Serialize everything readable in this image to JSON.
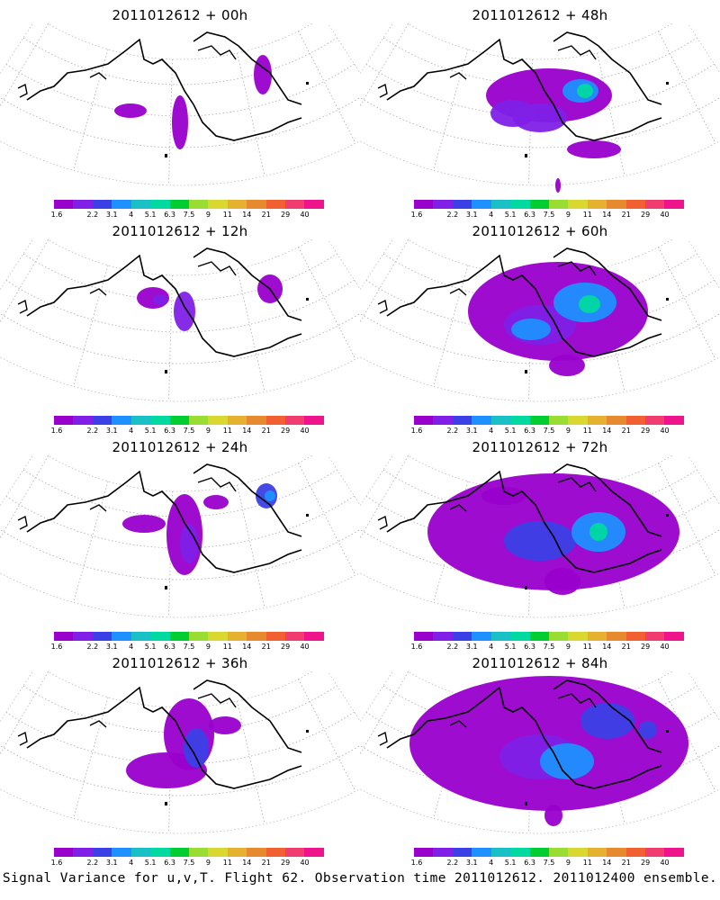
{
  "panels": [
    {
      "title": "2011012612 + 00h",
      "blobs": [
        [
          145,
          97,
          18,
          8,
          0
        ],
        [
          200,
          110,
          9,
          30,
          0
        ],
        [
          292,
          57,
          10,
          22,
          0
        ]
      ]
    },
    {
      "title": "2011012612 + 12h",
      "blobs": [
        [
          170,
          65,
          18,
          12,
          0
        ],
        [
          205,
          80,
          12,
          22,
          1
        ],
        [
          178,
          67,
          8,
          6,
          1
        ],
        [
          300,
          55,
          14,
          16,
          0
        ]
      ]
    },
    {
      "title": "2011012612 + 24h",
      "blobs": [
        [
          160,
          76,
          24,
          10,
          0
        ],
        [
          205,
          88,
          20,
          45,
          0
        ],
        [
          210,
          98,
          10,
          22,
          1
        ],
        [
          240,
          52,
          14,
          8,
          0
        ],
        [
          296,
          45,
          12,
          14,
          2
        ],
        [
          300,
          45,
          6,
          6,
          3
        ]
      ]
    },
    {
      "title": "2011012612 + 36h",
      "blobs": [
        [
          185,
          110,
          45,
          20,
          0
        ],
        [
          210,
          70,
          28,
          40,
          0
        ],
        [
          218,
          85,
          14,
          22,
          2
        ],
        [
          250,
          60,
          18,
          10,
          0
        ]
      ]
    },
    {
      "title": "2011012612 + 48h",
      "blobs": [
        [
          610,
          80,
          70,
          30,
          0
        ],
        [
          570,
          100,
          25,
          15,
          1
        ],
        [
          600,
          105,
          30,
          16,
          1
        ],
        [
          645,
          75,
          20,
          13,
          3
        ],
        [
          650,
          75,
          9,
          8,
          5
        ],
        [
          660,
          140,
          30,
          10,
          0
        ],
        [
          620,
          180,
          3,
          8,
          0
        ]
      ]
    },
    {
      "title": "2011012612 + 60h",
      "blobs": [
        [
          620,
          80,
          100,
          55,
          0
        ],
        [
          600,
          95,
          40,
          22,
          1
        ],
        [
          590,
          100,
          22,
          12,
          3
        ],
        [
          650,
          70,
          35,
          22,
          3
        ],
        [
          655,
          72,
          12,
          10,
          5
        ],
        [
          630,
          140,
          20,
          12,
          0
        ]
      ]
    },
    {
      "title": "2011012612 + 72h",
      "blobs": [
        [
          615,
          85,
          140,
          65,
          0
        ],
        [
          600,
          95,
          40,
          22,
          2
        ],
        [
          665,
          85,
          30,
          22,
          3
        ],
        [
          665,
          85,
          10,
          10,
          5
        ],
        [
          560,
          45,
          25,
          10,
          0
        ],
        [
          625,
          140,
          20,
          15,
          0
        ]
      ]
    },
    {
      "title": "2011012612 + 84h",
      "blobs": [
        [
          610,
          80,
          155,
          75,
          0
        ],
        [
          600,
          95,
          45,
          25,
          1
        ],
        [
          630,
          100,
          30,
          20,
          3
        ],
        [
          675,
          55,
          30,
          20,
          2
        ],
        [
          720,
          65,
          10,
          10,
          2
        ],
        [
          615,
          160,
          10,
          12,
          0
        ]
      ]
    }
  ],
  "colorbar": {
    "colors": [
      "#9900cc",
      "#8020e6",
      "#3b40e6",
      "#1e90ff",
      "#19c0c6",
      "#00d9a0",
      "#00cc33",
      "#99dd33",
      "#d8d830",
      "#e6b030",
      "#e68a30",
      "#f06030",
      "#f03c6e",
      "#f0148c"
    ],
    "labels": [
      "1.6",
      "2.2",
      "3.1",
      "4",
      "5.1",
      "6.3",
      "7.5",
      "9",
      "11",
      "14",
      "21",
      "29",
      "40"
    ]
  },
  "caption": "Signal Variance for u,v,T. Flight 62. Observation time 2011012612. 2011012400 ensemble."
}
